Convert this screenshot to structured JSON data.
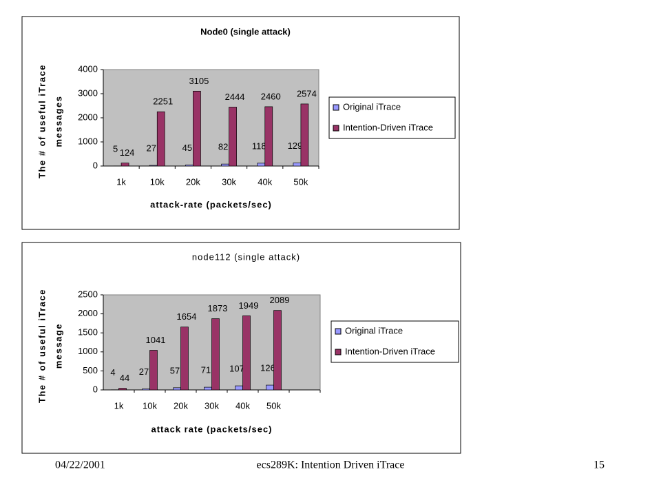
{
  "chart_data": [
    {
      "type": "bar",
      "title": "Node0 (single attack)",
      "ylabel": [
        "The # of useful iTrace",
        "messages"
      ],
      "xlabel": "attack-rate (packets/sec)",
      "categories": [
        "1k",
        "10k",
        "20k",
        "30k",
        "40k",
        "50k"
      ],
      "series": [
        {
          "name": "Original iTrace",
          "color": "#9999ff",
          "values": [
            5,
            27,
            45,
            82,
            118,
            129
          ]
        },
        {
          "name": "Intention-Driven iTrace",
          "color": "#993366",
          "values": [
            124,
            2251,
            3105,
            2444,
            2460,
            2574
          ]
        }
      ],
      "ylim": [
        0,
        4000
      ],
      "yticks": [
        0,
        1000,
        2000,
        3000,
        4000
      ],
      "plot_background": "#c0c0c0",
      "legend": "right"
    },
    {
      "type": "bar",
      "title": "node112 (single attack)",
      "ylabel": [
        "The # of useful iTrace",
        "message"
      ],
      "xlabel": "attack rate (packets/sec)",
      "categories": [
        "1k",
        "10k",
        "20k",
        "30k",
        "40k",
        "50k",
        null
      ],
      "series": [
        {
          "name": "Original iTrace",
          "color": "#9999ff",
          "values": [
            4,
            27,
            57,
            71,
            107,
            126,
            null
          ]
        },
        {
          "name": "Intention-Driven iTrace",
          "color": "#993366",
          "values": [
            44,
            1041,
            1654,
            1873,
            1949,
            2089,
            null
          ]
        }
      ],
      "ylim": [
        0,
        2500
      ],
      "yticks": [
        0,
        500,
        1000,
        1500,
        2000,
        2500
      ],
      "plot_background": "#c0c0c0",
      "legend": "right"
    }
  ],
  "footer": {
    "date": "04/22/2001",
    "title": "ecs289K: Intention Driven iTrace",
    "page": "15"
  }
}
